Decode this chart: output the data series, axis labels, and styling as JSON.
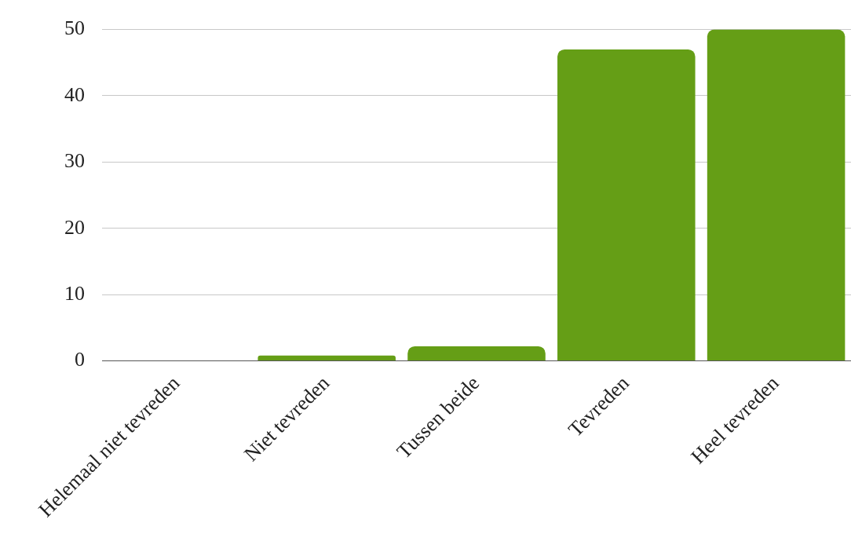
{
  "chart_data": {
    "type": "bar",
    "categories": [
      "Helemaal niet tevreden",
      "Niet tevreden",
      "Tussen beide",
      "Tevreden",
      "Heel tevreden"
    ],
    "values": [
      0,
      0.8,
      2.2,
      47,
      50
    ],
    "color": "#659e16",
    "ylim": [
      0,
      50
    ],
    "yticks": [
      0,
      10,
      20,
      30,
      40,
      50
    ],
    "grid": "y"
  }
}
